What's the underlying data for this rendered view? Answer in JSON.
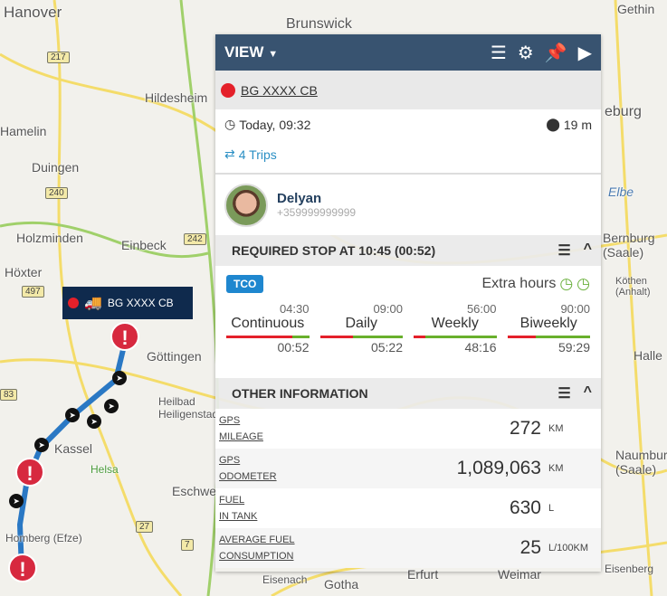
{
  "map": {
    "labels": [
      "Hanover",
      "Brunswick",
      "Hildesheim",
      "Hamelin",
      "Duingen",
      "Holzminden",
      "Einbeck",
      "Höxter",
      "Göttingen",
      "Heilbad Heiligenstadt",
      "Kassel",
      "Eschwege",
      "Homberg (Efze)",
      "Gotha",
      "Erfurt",
      "Weimar",
      "Eisenach",
      "Elbe",
      "Gethin",
      "eburg",
      "Naumburg (Saale)",
      "Bernburg (Saale)",
      "Halle",
      "Köthen (Anhalt)",
      "Eisenberg",
      "Helsa"
    ],
    "shields": [
      "217",
      "240",
      "242",
      "497",
      "83",
      "27",
      "7"
    ]
  },
  "header": {
    "view_label": "VIEW",
    "icons": [
      "list-icon",
      "gear-icon",
      "pin-icon",
      "play-icon"
    ]
  },
  "vehicle": {
    "plate": "BG XXXX CB",
    "status_color": "#e4202a"
  },
  "info": {
    "time": "Today, 09:32",
    "duration": "19 m",
    "trips": "4 Trips"
  },
  "driver": {
    "name": "Delyan",
    "phone": "+359999999999"
  },
  "required_stop": {
    "title": "REQUIRED STOP AT 10:45 (00:52)"
  },
  "tco": {
    "badge": "TCO",
    "extra_hours": "Extra hours",
    "gauges": [
      {
        "label": "Continuous",
        "limit": "04:30",
        "value": "00:52",
        "used_fraction": 0.8
      },
      {
        "label": "Daily",
        "limit": "09:00",
        "value": "05:22",
        "used_fraction": 0.4
      },
      {
        "label": "Weekly",
        "limit": "56:00",
        "value": "48:16",
        "used_fraction": 0.14
      },
      {
        "label": "Biweekly",
        "limit": "90:00",
        "value": "59:29",
        "used_fraction": 0.34
      }
    ]
  },
  "other": {
    "title": "OTHER INFORMATION",
    "rows": [
      {
        "l1": "GPS",
        "l2": "MILEAGE",
        "value": "272",
        "unit": "KM"
      },
      {
        "l1": "GPS",
        "l2": "ODOMETER",
        "value": "1,089,063",
        "unit": "KM"
      },
      {
        "l1": "FUEL",
        "l2": "IN TANK",
        "value": "630",
        "unit": "L"
      },
      {
        "l1": "AVERAGE FUEL",
        "l2": "CONSUMPTION",
        "value": "25",
        "unit": "L/100KM"
      }
    ]
  },
  "map_tag": {
    "plate": "BG XXXX CB"
  }
}
